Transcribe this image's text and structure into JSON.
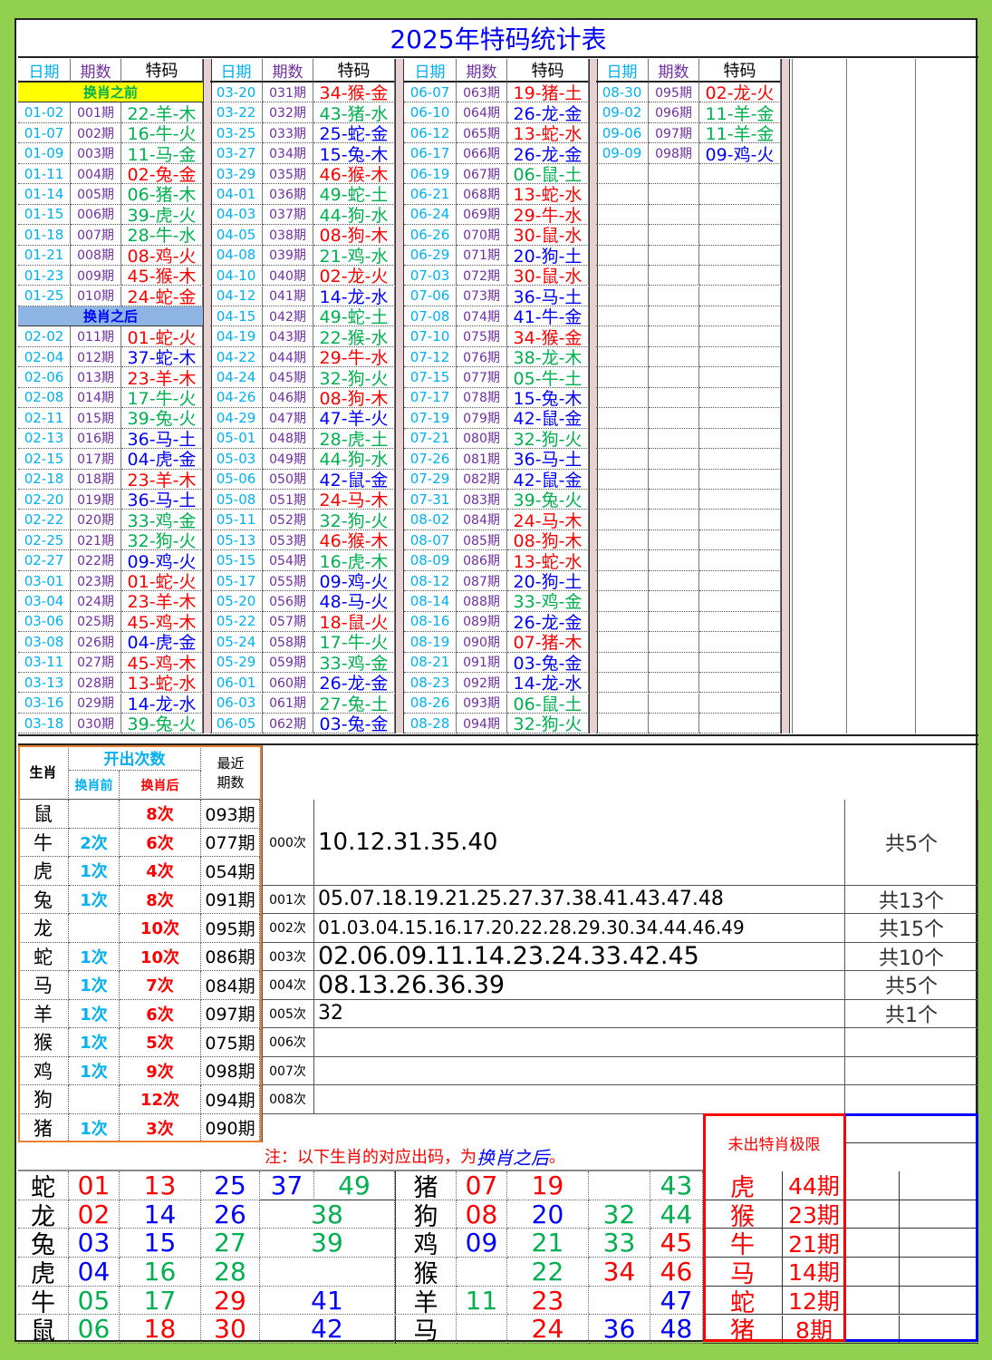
{
  "title": "2025年特码统计表",
  "headers": {
    "date": "日期",
    "period": "期数",
    "tema": "特码"
  },
  "sections": {
    "before": "换肖之前",
    "after": "换肖之后"
  },
  "colors": {
    "date": "#00b0f0",
    "period": "#7030a0",
    "title": "#0000ff",
    "red": "#ff0000",
    "blue": "#0000ff",
    "green": "#00b050",
    "before_bg": "#ffff00",
    "after_bg": "#8db4e2",
    "frame": "#92d050"
  },
  "wave_colors": {
    "red": [
      "01",
      "02",
      "07",
      "08",
      "12",
      "13",
      "18",
      "19",
      "23",
      "24",
      "29",
      "30",
      "34",
      "35",
      "40",
      "45",
      "46"
    ],
    "blue": [
      "03",
      "04",
      "09",
      "10",
      "14",
      "15",
      "20",
      "25",
      "26",
      "31",
      "36",
      "37",
      "41",
      "42",
      "47",
      "48"
    ],
    "green": [
      "05",
      "06",
      "11",
      "16",
      "17",
      "21",
      "22",
      "27",
      "28",
      "32",
      "33",
      "38",
      "39",
      "43",
      "44",
      "49"
    ]
  },
  "draws": [
    {
      "date": "01-02",
      "period": "001期",
      "tema": "22-羊-木"
    },
    {
      "date": "01-07",
      "period": "002期",
      "tema": "16-牛-火"
    },
    {
      "date": "01-09",
      "period": "003期",
      "tema": "11-马-金"
    },
    {
      "date": "01-11",
      "period": "004期",
      "tema": "02-兔-金"
    },
    {
      "date": "01-14",
      "period": "005期",
      "tema": "06-猪-木"
    },
    {
      "date": "01-15",
      "period": "006期",
      "tema": "39-虎-火"
    },
    {
      "date": "01-18",
      "period": "007期",
      "tema": "28-牛-水"
    },
    {
      "date": "01-21",
      "period": "008期",
      "tema": "08-鸡-火"
    },
    {
      "date": "01-23",
      "period": "009期",
      "tema": "45-猴-木"
    },
    {
      "date": "01-25",
      "period": "010期",
      "tema": "24-蛇-金"
    },
    {
      "date": "02-02",
      "period": "011期",
      "tema": "01-蛇-火"
    },
    {
      "date": "02-04",
      "period": "012期",
      "tema": "37-蛇-木"
    },
    {
      "date": "02-06",
      "period": "013期",
      "tema": "23-羊-木"
    },
    {
      "date": "02-08",
      "period": "014期",
      "tema": "17-牛-火"
    },
    {
      "date": "02-11",
      "period": "015期",
      "tema": "39-兔-火"
    },
    {
      "date": "02-13",
      "period": "016期",
      "tema": "36-马-土"
    },
    {
      "date": "02-15",
      "period": "017期",
      "tema": "04-虎-金"
    },
    {
      "date": "02-18",
      "period": "018期",
      "tema": "23-羊-木"
    },
    {
      "date": "02-20",
      "period": "019期",
      "tema": "36-马-土"
    },
    {
      "date": "02-22",
      "period": "020期",
      "tema": "33-鸡-金"
    },
    {
      "date": "02-25",
      "period": "021期",
      "tema": "32-狗-火"
    },
    {
      "date": "02-27",
      "period": "022期",
      "tema": "09-鸡-火"
    },
    {
      "date": "03-01",
      "period": "023期",
      "tema": "01-蛇-火"
    },
    {
      "date": "03-04",
      "period": "024期",
      "tema": "23-羊-木"
    },
    {
      "date": "03-06",
      "period": "025期",
      "tema": "45-鸡-木"
    },
    {
      "date": "03-08",
      "period": "026期",
      "tema": "04-虎-金"
    },
    {
      "date": "03-11",
      "period": "027期",
      "tema": "45-鸡-木"
    },
    {
      "date": "03-13",
      "period": "028期",
      "tema": "13-蛇-水"
    },
    {
      "date": "03-16",
      "period": "029期",
      "tema": "14-龙-水"
    },
    {
      "date": "03-18",
      "period": "030期",
      "tema": "39-兔-火"
    },
    {
      "date": "03-20",
      "period": "031期",
      "tema": "34-猴-金"
    },
    {
      "date": "03-22",
      "period": "032期",
      "tema": "43-猪-水"
    },
    {
      "date": "03-25",
      "period": "033期",
      "tema": "25-蛇-金"
    },
    {
      "date": "03-27",
      "period": "034期",
      "tema": "15-兔-木"
    },
    {
      "date": "03-29",
      "period": "035期",
      "tema": "46-猴-木"
    },
    {
      "date": "04-01",
      "period": "036期",
      "tema": "49-蛇-土"
    },
    {
      "date": "04-03",
      "period": "037期",
      "tema": "44-狗-水"
    },
    {
      "date": "04-05",
      "period": "038期",
      "tema": "08-狗-木"
    },
    {
      "date": "04-08",
      "period": "039期",
      "tema": "21-鸡-水"
    },
    {
      "date": "04-10",
      "period": "040期",
      "tema": "02-龙-火"
    },
    {
      "date": "04-12",
      "period": "041期",
      "tema": "14-龙-水"
    },
    {
      "date": "04-15",
      "period": "042期",
      "tema": "49-蛇-土"
    },
    {
      "date": "04-19",
      "period": "043期",
      "tema": "22-猴-水"
    },
    {
      "date": "04-22",
      "period": "044期",
      "tema": "29-牛-水"
    },
    {
      "date": "04-24",
      "period": "045期",
      "tema": "32-狗-火"
    },
    {
      "date": "04-26",
      "period": "046期",
      "tema": "08-狗-木"
    },
    {
      "date": "04-29",
      "period": "047期",
      "tema": "47-羊-火"
    },
    {
      "date": "05-01",
      "period": "048期",
      "tema": "28-虎-土"
    },
    {
      "date": "05-03",
      "period": "049期",
      "tema": "44-狗-水"
    },
    {
      "date": "05-06",
      "period": "050期",
      "tema": "42-鼠-金"
    },
    {
      "date": "05-08",
      "period": "051期",
      "tema": "24-马-木"
    },
    {
      "date": "05-11",
      "period": "052期",
      "tema": "32-狗-火"
    },
    {
      "date": "05-13",
      "period": "053期",
      "tema": "46-猴-木"
    },
    {
      "date": "05-15",
      "period": "054期",
      "tema": "16-虎-木"
    },
    {
      "date": "05-17",
      "period": "055期",
      "tema": "09-鸡-火"
    },
    {
      "date": "05-20",
      "period": "056期",
      "tema": "48-马-火"
    },
    {
      "date": "05-22",
      "period": "057期",
      "tema": "18-鼠-火"
    },
    {
      "date": "05-24",
      "period": "058期",
      "tema": "17-牛-火"
    },
    {
      "date": "05-29",
      "period": "059期",
      "tema": "33-鸡-金"
    },
    {
      "date": "06-01",
      "period": "060期",
      "tema": "26-龙-金"
    },
    {
      "date": "06-03",
      "period": "061期",
      "tema": "27-兔-土"
    },
    {
      "date": "06-05",
      "period": "062期",
      "tema": "03-兔-金"
    },
    {
      "date": "06-07",
      "period": "063期",
      "tema": "19-猪-土"
    },
    {
      "date": "06-10",
      "period": "064期",
      "tema": "26-龙-金"
    },
    {
      "date": "06-12",
      "period": "065期",
      "tema": "13-蛇-水"
    },
    {
      "date": "06-17",
      "period": "066期",
      "tema": "26-龙-金"
    },
    {
      "date": "06-19",
      "period": "067期",
      "tema": "06-鼠-土"
    },
    {
      "date": "06-21",
      "period": "068期",
      "tema": "13-蛇-水"
    },
    {
      "date": "06-24",
      "period": "069期",
      "tema": "29-牛-水"
    },
    {
      "date": "06-26",
      "period": "070期",
      "tema": "30-鼠-水"
    },
    {
      "date": "06-29",
      "period": "071期",
      "tema": "20-狗-土"
    },
    {
      "date": "07-03",
      "period": "072期",
      "tema": "30-鼠-水"
    },
    {
      "date": "07-06",
      "period": "073期",
      "tema": "36-马-土"
    },
    {
      "date": "07-08",
      "period": "074期",
      "tema": "41-牛-金"
    },
    {
      "date": "07-10",
      "period": "075期",
      "tema": "34-猴-金"
    },
    {
      "date": "07-12",
      "period": "076期",
      "tema": "38-龙-木"
    },
    {
      "date": "07-15",
      "period": "077期",
      "tema": "05-牛-土"
    },
    {
      "date": "07-17",
      "period": "078期",
      "tema": "15-兔-木"
    },
    {
      "date": "07-19",
      "period": "079期",
      "tema": "42-鼠-金"
    },
    {
      "date": "07-21",
      "period": "080期",
      "tema": "32-狗-火"
    },
    {
      "date": "07-26",
      "period": "081期",
      "tema": "36-马-土"
    },
    {
      "date": "07-29",
      "period": "082期",
      "tema": "42-鼠-金"
    },
    {
      "date": "07-31",
      "period": "083期",
      "tema": "39-兔-火"
    },
    {
      "date": "08-02",
      "period": "084期",
      "tema": "24-马-木"
    },
    {
      "date": "08-07",
      "period": "085期",
      "tema": "08-狗-木"
    },
    {
      "date": "08-09",
      "period": "086期",
      "tema": "13-蛇-水"
    },
    {
      "date": "08-12",
      "period": "087期",
      "tema": "20-狗-土"
    },
    {
      "date": "08-14",
      "period": "088期",
      "tema": "33-鸡-金"
    },
    {
      "date": "08-16",
      "period": "089期",
      "tema": "26-龙-金"
    },
    {
      "date": "08-19",
      "period": "090期",
      "tema": "07-猪-木"
    },
    {
      "date": "08-21",
      "period": "091期",
      "tema": "03-兔-金"
    },
    {
      "date": "08-23",
      "period": "092期",
      "tema": "14-龙-水"
    },
    {
      "date": "08-26",
      "period": "093期",
      "tema": "06-鼠-土"
    },
    {
      "date": "08-28",
      "period": "094期",
      "tema": "32-狗-火"
    },
    {
      "date": "08-30",
      "period": "095期",
      "tema": "02-龙-火"
    },
    {
      "date": "09-02",
      "period": "096期",
      "tema": "11-羊-金"
    },
    {
      "date": "09-06",
      "period": "097期",
      "tema": "11-羊-金"
    },
    {
      "date": "09-09",
      "period": "098期",
      "tema": "09-鸡-火"
    }
  ],
  "stats": {
    "headers": {
      "zodiac": "生肖",
      "count": "开出次数",
      "before": "换肖前",
      "after": "换肖后",
      "recent1": "最近",
      "recent2": "期数"
    },
    "rows": [
      {
        "z": "鼠",
        "before": "",
        "after": "8次",
        "recent": "093期"
      },
      {
        "z": "牛",
        "before": "2次",
        "after": "6次",
        "recent": "077期"
      },
      {
        "z": "虎",
        "before": "1次",
        "after": "4次",
        "recent": "054期"
      },
      {
        "z": "兔",
        "before": "1次",
        "after": "8次",
        "recent": "091期"
      },
      {
        "z": "龙",
        "before": "",
        "after": "10次",
        "recent": "095期"
      },
      {
        "z": "蛇",
        "before": "1次",
        "after": "10次",
        "recent": "086期"
      },
      {
        "z": "马",
        "before": "1次",
        "after": "7次",
        "recent": "084期"
      },
      {
        "z": "羊",
        "before": "1次",
        "after": "6次",
        "recent": "097期"
      },
      {
        "z": "猴",
        "before": "1次",
        "after": "5次",
        "recent": "075期"
      },
      {
        "z": "鸡",
        "before": "1次",
        "after": "9次",
        "recent": "098期"
      },
      {
        "z": "狗",
        "before": "",
        "after": "12次",
        "recent": "094期"
      },
      {
        "z": "猪",
        "before": "1次",
        "after": "3次",
        "recent": "090期"
      }
    ]
  },
  "omission": [
    {
      "label": "000次",
      "numbers": "10.12.31.35.40",
      "total": "共5个"
    },
    {
      "label": "001次",
      "numbers": "05.07.18.19.21.25.27.37.38.41.43.47.48",
      "total": "共13个"
    },
    {
      "label": "002次",
      "numbers": "01.03.04.15.16.17.20.22.28.29.30.34.44.46.49",
      "total": "共15个"
    },
    {
      "label": "003次",
      "numbers": "02.06.09.11.14.23.24.33.42.45",
      "total": "共10个"
    },
    {
      "label": "004次",
      "numbers": "08.13.26.36.39",
      "total": "共5个"
    },
    {
      "label": "005次",
      "numbers": "32",
      "total": "共1个"
    },
    {
      "label": "006次",
      "numbers": "",
      "total": ""
    },
    {
      "label": "007次",
      "numbers": "",
      "total": ""
    },
    {
      "label": "008次",
      "numbers": "",
      "total": ""
    }
  ],
  "note": {
    "prefix": "注：以下生肖的对应出码，为",
    "emphasis": "换肖之后",
    "suffix": "。"
  },
  "grid_left": [
    {
      "z": "蛇",
      "nums": [
        "01",
        "13",
        "25",
        "37",
        "49"
      ]
    },
    {
      "z": "龙",
      "nums": [
        "02",
        "14",
        "26",
        "38"
      ]
    },
    {
      "z": "兔",
      "nums": [
        "03",
        "15",
        "27",
        "39"
      ]
    },
    {
      "z": "虎",
      "nums": [
        "04",
        "16",
        "28",
        ""
      ]
    },
    {
      "z": "牛",
      "nums": [
        "05",
        "17",
        "29",
        "41"
      ]
    },
    {
      "z": "鼠",
      "nums": [
        "06",
        "18",
        "30",
        "42"
      ]
    }
  ],
  "grid_right": [
    {
      "z": "猪",
      "nums": [
        "07",
        "19",
        "",
        "43"
      ]
    },
    {
      "z": "狗",
      "nums": [
        "08",
        "20",
        "32",
        "44"
      ]
    },
    {
      "z": "鸡",
      "nums": [
        "09",
        "21",
        "33",
        "45"
      ]
    },
    {
      "z": "猴",
      "nums": [
        "",
        "22",
        "34",
        "46"
      ]
    },
    {
      "z": "羊",
      "nums": [
        "11",
        "23",
        "",
        "47"
      ]
    },
    {
      "z": "马",
      "nums": [
        "",
        "24",
        "36",
        "48"
      ]
    }
  ],
  "limit": {
    "title": "未出特肖极限",
    "rows": [
      {
        "z": "虎",
        "periods": "44期"
      },
      {
        "z": "猴",
        "periods": "23期"
      },
      {
        "z": "牛",
        "periods": "21期"
      },
      {
        "z": "马",
        "periods": "14期"
      },
      {
        "z": "蛇",
        "periods": "12期"
      },
      {
        "z": "猪",
        "periods": "8期"
      }
    ]
  }
}
